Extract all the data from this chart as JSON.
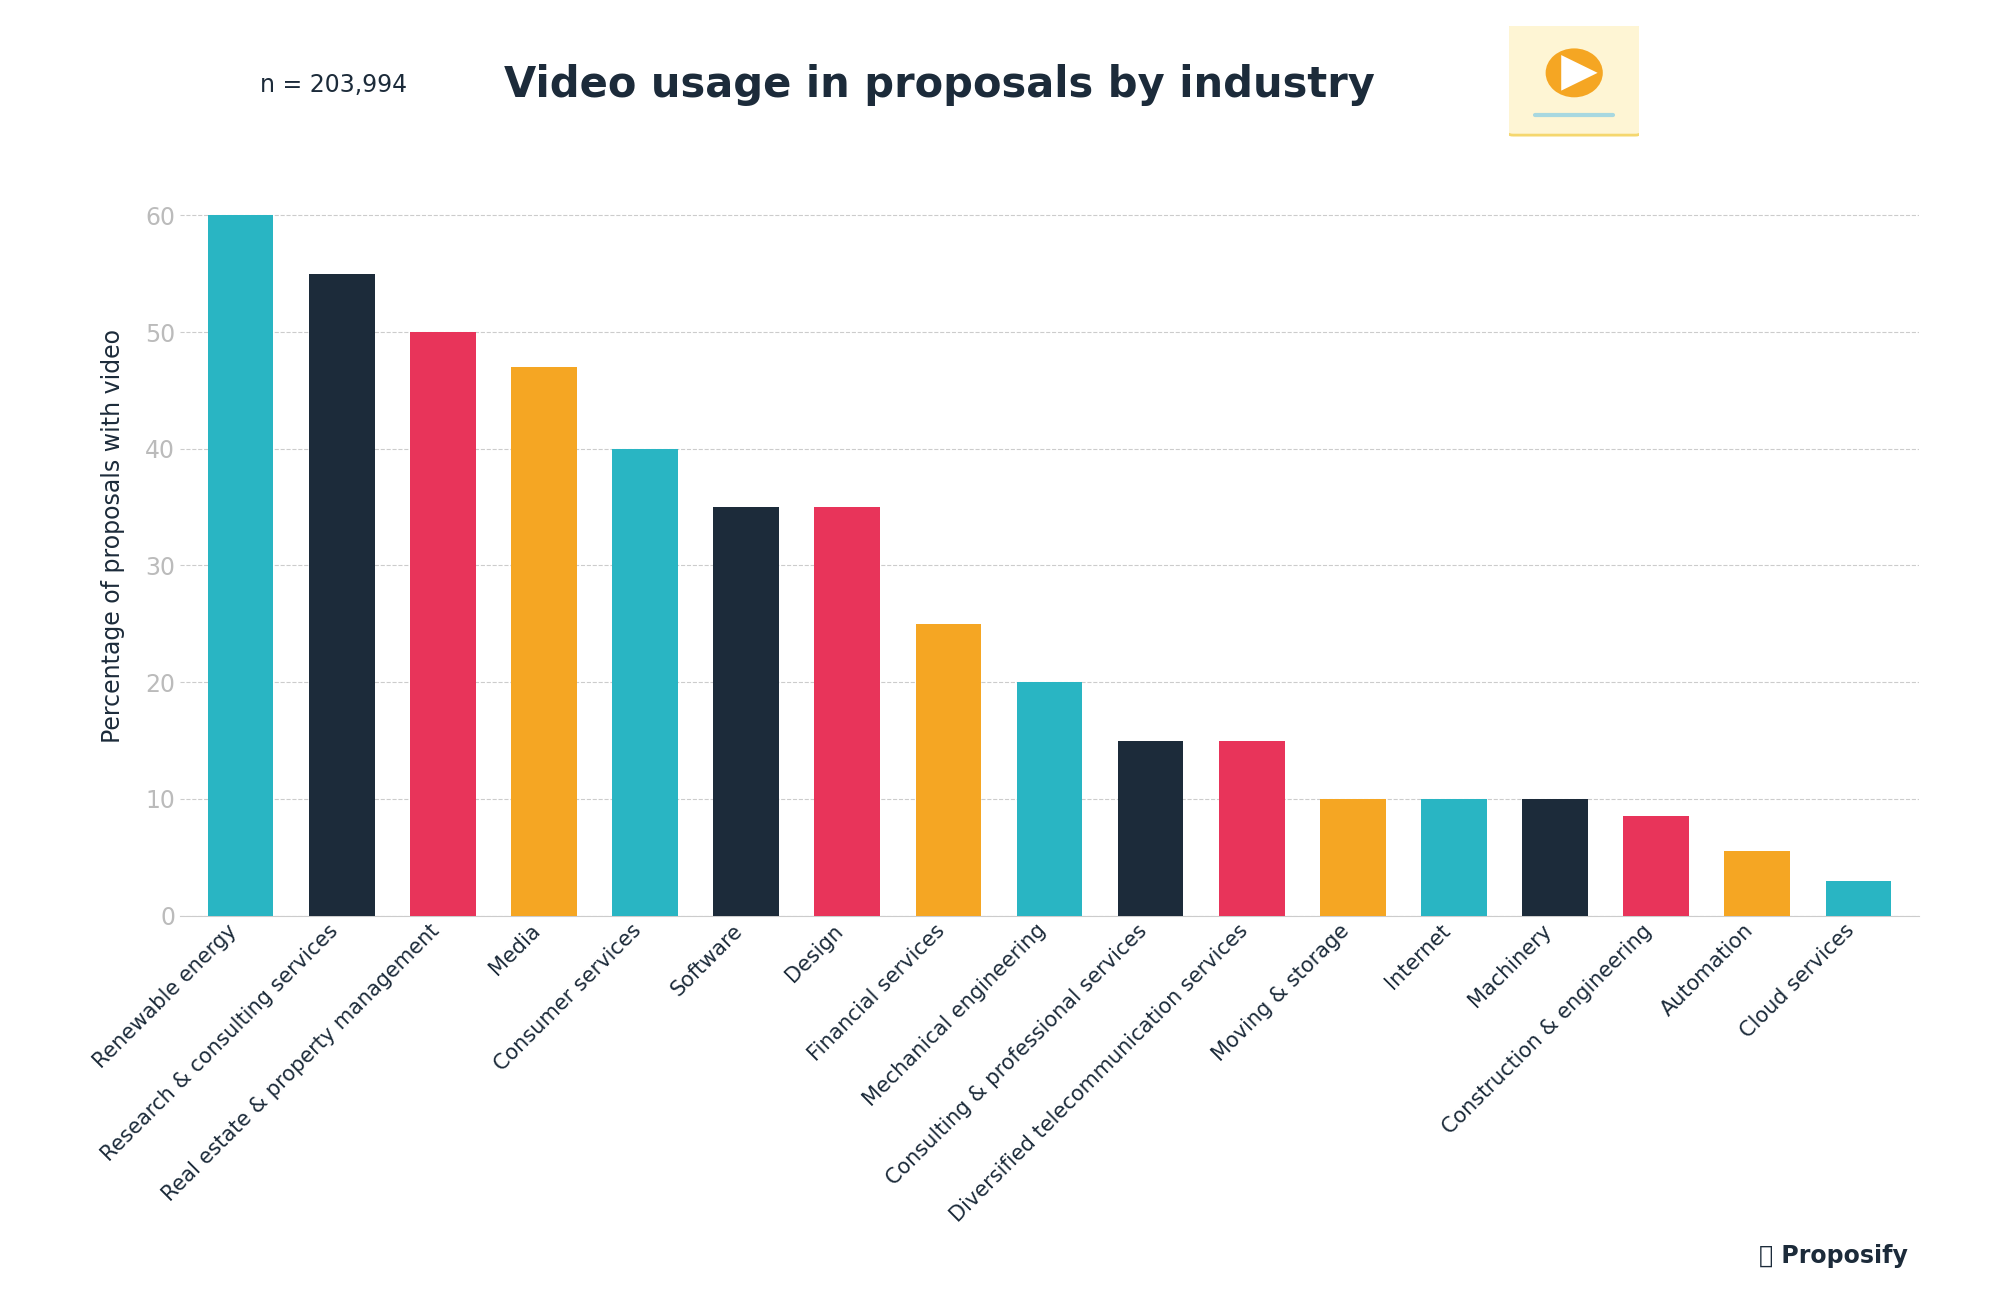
{
  "title": "Video usage in proposals by industry",
  "subtitle": "n = 203,994",
  "ylabel": "Percentage of proposals with video",
  "categories": [
    "Renewable energy",
    "Research & consulting services",
    "Real estate & property management",
    "Media",
    "Consumer services",
    "Software",
    "Design",
    "Financial services",
    "Mechanical engineering",
    "Consulting & professional services",
    "Diversified telecommunication services",
    "Moving & storage",
    "Internet",
    "Machinery",
    "Construction & engineering",
    "Automation",
    "Cloud services"
  ],
  "values": [
    60,
    55,
    50,
    47,
    40,
    35,
    35,
    25,
    20,
    15,
    15,
    10,
    10,
    10,
    8.5,
    5.5,
    3
  ],
  "colors": [
    "#29b5c3",
    "#1c2b3a",
    "#e8345a",
    "#f5a623",
    "#29b5c3",
    "#1c2b3a",
    "#e8345a",
    "#f5a623",
    "#29b5c3",
    "#1c2b3a",
    "#e8345a",
    "#f5a623",
    "#29b5c3",
    "#1c2b3a",
    "#e8345a",
    "#f5a623",
    "#29b5c3"
  ],
  "ylim": [
    0,
    65
  ],
  "yticks": [
    0,
    10,
    20,
    30,
    40,
    50,
    60
  ],
  "bg_color": "#ffffff",
  "grid_color": "#cccccc",
  "title_color": "#1c2b3a",
  "subtitle_color": "#1c2b3a",
  "ylabel_color": "#1c2b3a",
  "tick_color": "#bbbbbb",
  "title_fontsize": 30,
  "subtitle_fontsize": 17,
  "ylabel_fontsize": 17,
  "tick_fontsize": 17,
  "xtick_fontsize": 15,
  "icon_box_color": "#fef5d4",
  "icon_border_color": "#f5d76e",
  "icon_play_color": "#f5a623",
  "icon_line_color": "#a8d8e0"
}
